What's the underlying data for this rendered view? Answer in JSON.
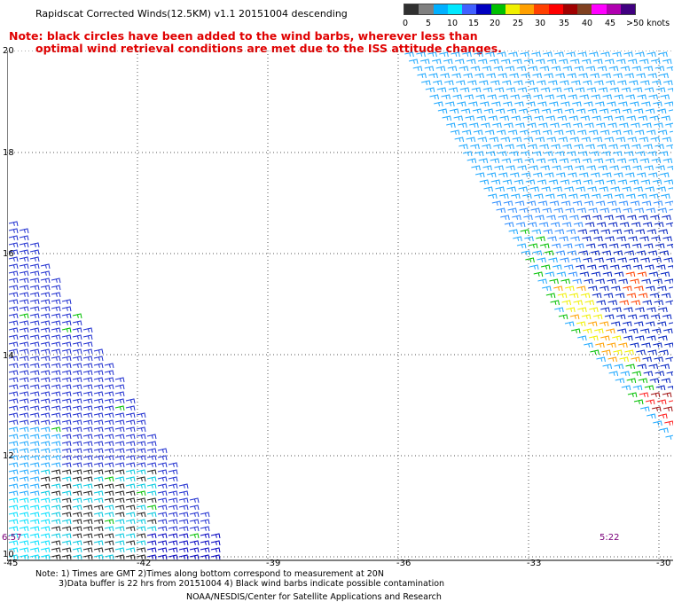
{
  "title": "Rapidscat Corrected Winds(12.5KM) v1.1 20151004 descending",
  "note": {
    "line1": "Note: black circles have been added to the wind barbs, wherever less than",
    "line2": "optimal wind retrieval conditions are met due to the ISS attitude changes."
  },
  "colorbar": {
    "colors": [
      "#303030",
      "#808080",
      "#00b0ff",
      "#00e8ff",
      "#4060ff",
      "#0000c0",
      "#00c000",
      "#f0f000",
      "#ffa000",
      "#ff4000",
      "#ff0000",
      "#a00000",
      "#804020",
      "#ff00ff",
      "#b000b0",
      "#400080"
    ],
    "labels": [
      "0",
      "5",
      "10",
      "15",
      "20",
      "25",
      "30",
      "35",
      "40",
      "45",
      ">50 knots"
    ]
  },
  "axes": {
    "lat_labels": [
      "20",
      "18",
      "16",
      "14",
      "12",
      "10"
    ],
    "lon_labels": [
      "-45",
      "-42",
      "-39",
      "-36",
      "-33",
      "-30"
    ]
  },
  "times": [
    "6:57",
    "5:22"
  ],
  "footer": {
    "line1": "Note: 1) Times are GMT 2)Times along bottom correspond to measurement at 20N",
    "line2": "3)Data buffer is 22 hrs from 20151004 4) Black wind barbs indicate possible contamination",
    "credit": "NOAA/NESDIS/Center for Satellite Applications and Research"
  }
}
